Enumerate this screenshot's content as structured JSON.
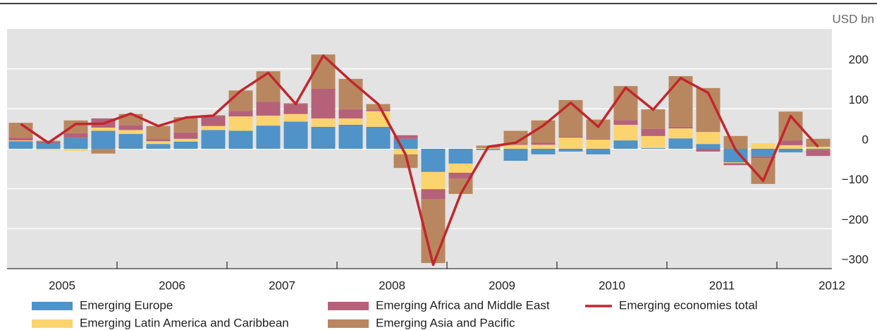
{
  "chart_data": {
    "type": "bar",
    "stacked": true,
    "y_axis_label": "USD bn",
    "categories": [
      "2005",
      null,
      null,
      null,
      "2006",
      null,
      null,
      null,
      "2007",
      null,
      null,
      null,
      "2008",
      null,
      null,
      null,
      "2009",
      null,
      null,
      null,
      "2010",
      null,
      null,
      null,
      "2011",
      null,
      null,
      null,
      "2012",
      null
    ],
    "series": [
      {
        "name": "Emerging Europe",
        "color": "#4f93c9",
        "values": [
          19,
          15,
          27,
          45,
          37,
          12,
          18,
          47,
          45,
          58,
          68,
          55,
          60,
          55,
          25,
          -58,
          -37,
          -3,
          -30,
          -14,
          -7,
          -14,
          21,
          2,
          26,
          12,
          -34,
          -19,
          -9,
          -3
        ]
      },
      {
        "name": "Emerging Latin America and Caribbean",
        "color": "#fcd46e",
        "values": [
          2,
          -3,
          -5,
          8,
          10,
          7,
          7,
          10,
          36,
          25,
          19,
          21,
          16,
          39,
          -14,
          -43,
          -23,
          2,
          10,
          10,
          28,
          23,
          39,
          30,
          25,
          30,
          -2,
          14,
          9,
          5
        ]
      },
      {
        "name": "Emerging Africa and Middle East",
        "color": "#b6617a",
        "values": [
          7,
          3,
          12,
          23,
          12,
          5,
          16,
          25,
          14,
          35,
          25,
          74,
          23,
          4,
          9,
          -25,
          -14,
          1,
          3,
          5,
          2,
          2,
          12,
          18,
          4,
          -7,
          -5,
          -4,
          12,
          -15
        ]
      },
      {
        "name": "Emerging Asia and Pacific",
        "color": "#b9875f",
        "values": [
          37,
          2,
          32,
          -12,
          28,
          33,
          38,
          2,
          51,
          76,
          2,
          86,
          76,
          14,
          -34,
          -160,
          -39,
          5,
          32,
          56,
          92,
          48,
          85,
          49,
          127,
          110,
          32,
          -65,
          72,
          20
        ]
      }
    ],
    "line": {
      "name": "Emerging economies total",
      "color": "#c1272d",
      "values": [
        62,
        15,
        62,
        63,
        88,
        57,
        78,
        83,
        145,
        190,
        112,
        233,
        170,
        112,
        -15,
        -290,
        -113,
        5,
        15,
        58,
        115,
        55,
        153,
        98,
        177,
        140,
        -3,
        -80,
        82,
        5
      ]
    },
    "ylim": [
      -300,
      300
    ],
    "yticks": [
      {
        "value": -300,
        "label": "−300"
      },
      {
        "value": -200,
        "label": "−200"
      },
      {
        "value": -100,
        "label": "−100"
      },
      0,
      100,
      200
    ],
    "grid": true
  }
}
